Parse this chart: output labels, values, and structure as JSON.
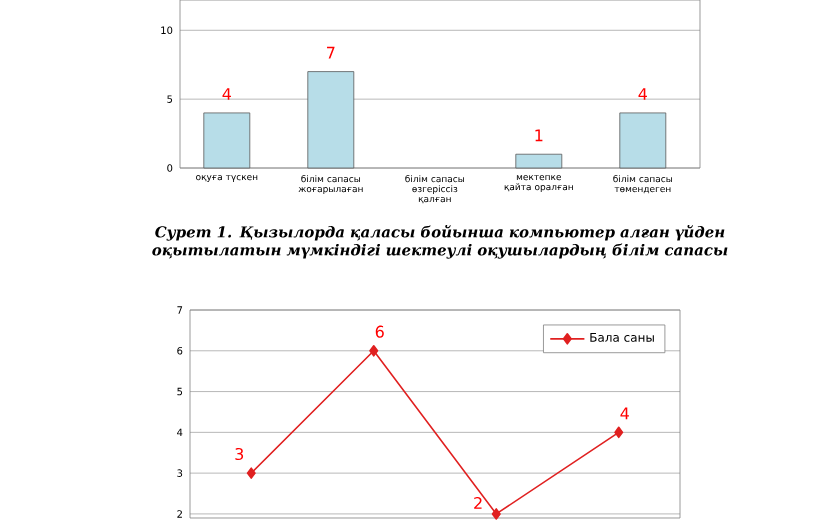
{
  "chart_data": [
    {
      "type": "bar",
      "categories": [
        "оқуға түскен",
        "білім сапасы жоғарылаған",
        "білім сапасы өзгеріссіз қалған",
        "мектепке қайта оралған",
        "білім сапасы төмендеген"
      ],
      "values": [
        4,
        7,
        null,
        1,
        4
      ],
      "value_labels": [
        "4",
        "7",
        null,
        "1",
        "4"
      ],
      "color": "#b7dde8",
      "ylim": [
        0,
        12.2
      ],
      "yticks": [
        0,
        5,
        10
      ],
      "grid": "y",
      "annotations": [
        "Сурет 1. Қызылорда қаласы бойынша компьютер алған үйден оқытылатын мүмкіндігі шектеулі оқушылардың білім сапасы"
      ]
    },
    {
      "type": "line",
      "categories": [
        null,
        null,
        null,
        null
      ],
      "series": [
        {
          "name": "Бала саны",
          "color": "#e02020",
          "values": [
            3,
            6,
            2,
            4
          ]
        }
      ],
      "data_labels": true,
      "marker": "diamond",
      "ylim": [
        1.9,
        7
      ],
      "yticks": [
        2,
        3,
        4,
        5,
        6,
        7
      ],
      "grid": "y",
      "legend": "top right"
    }
  ]
}
